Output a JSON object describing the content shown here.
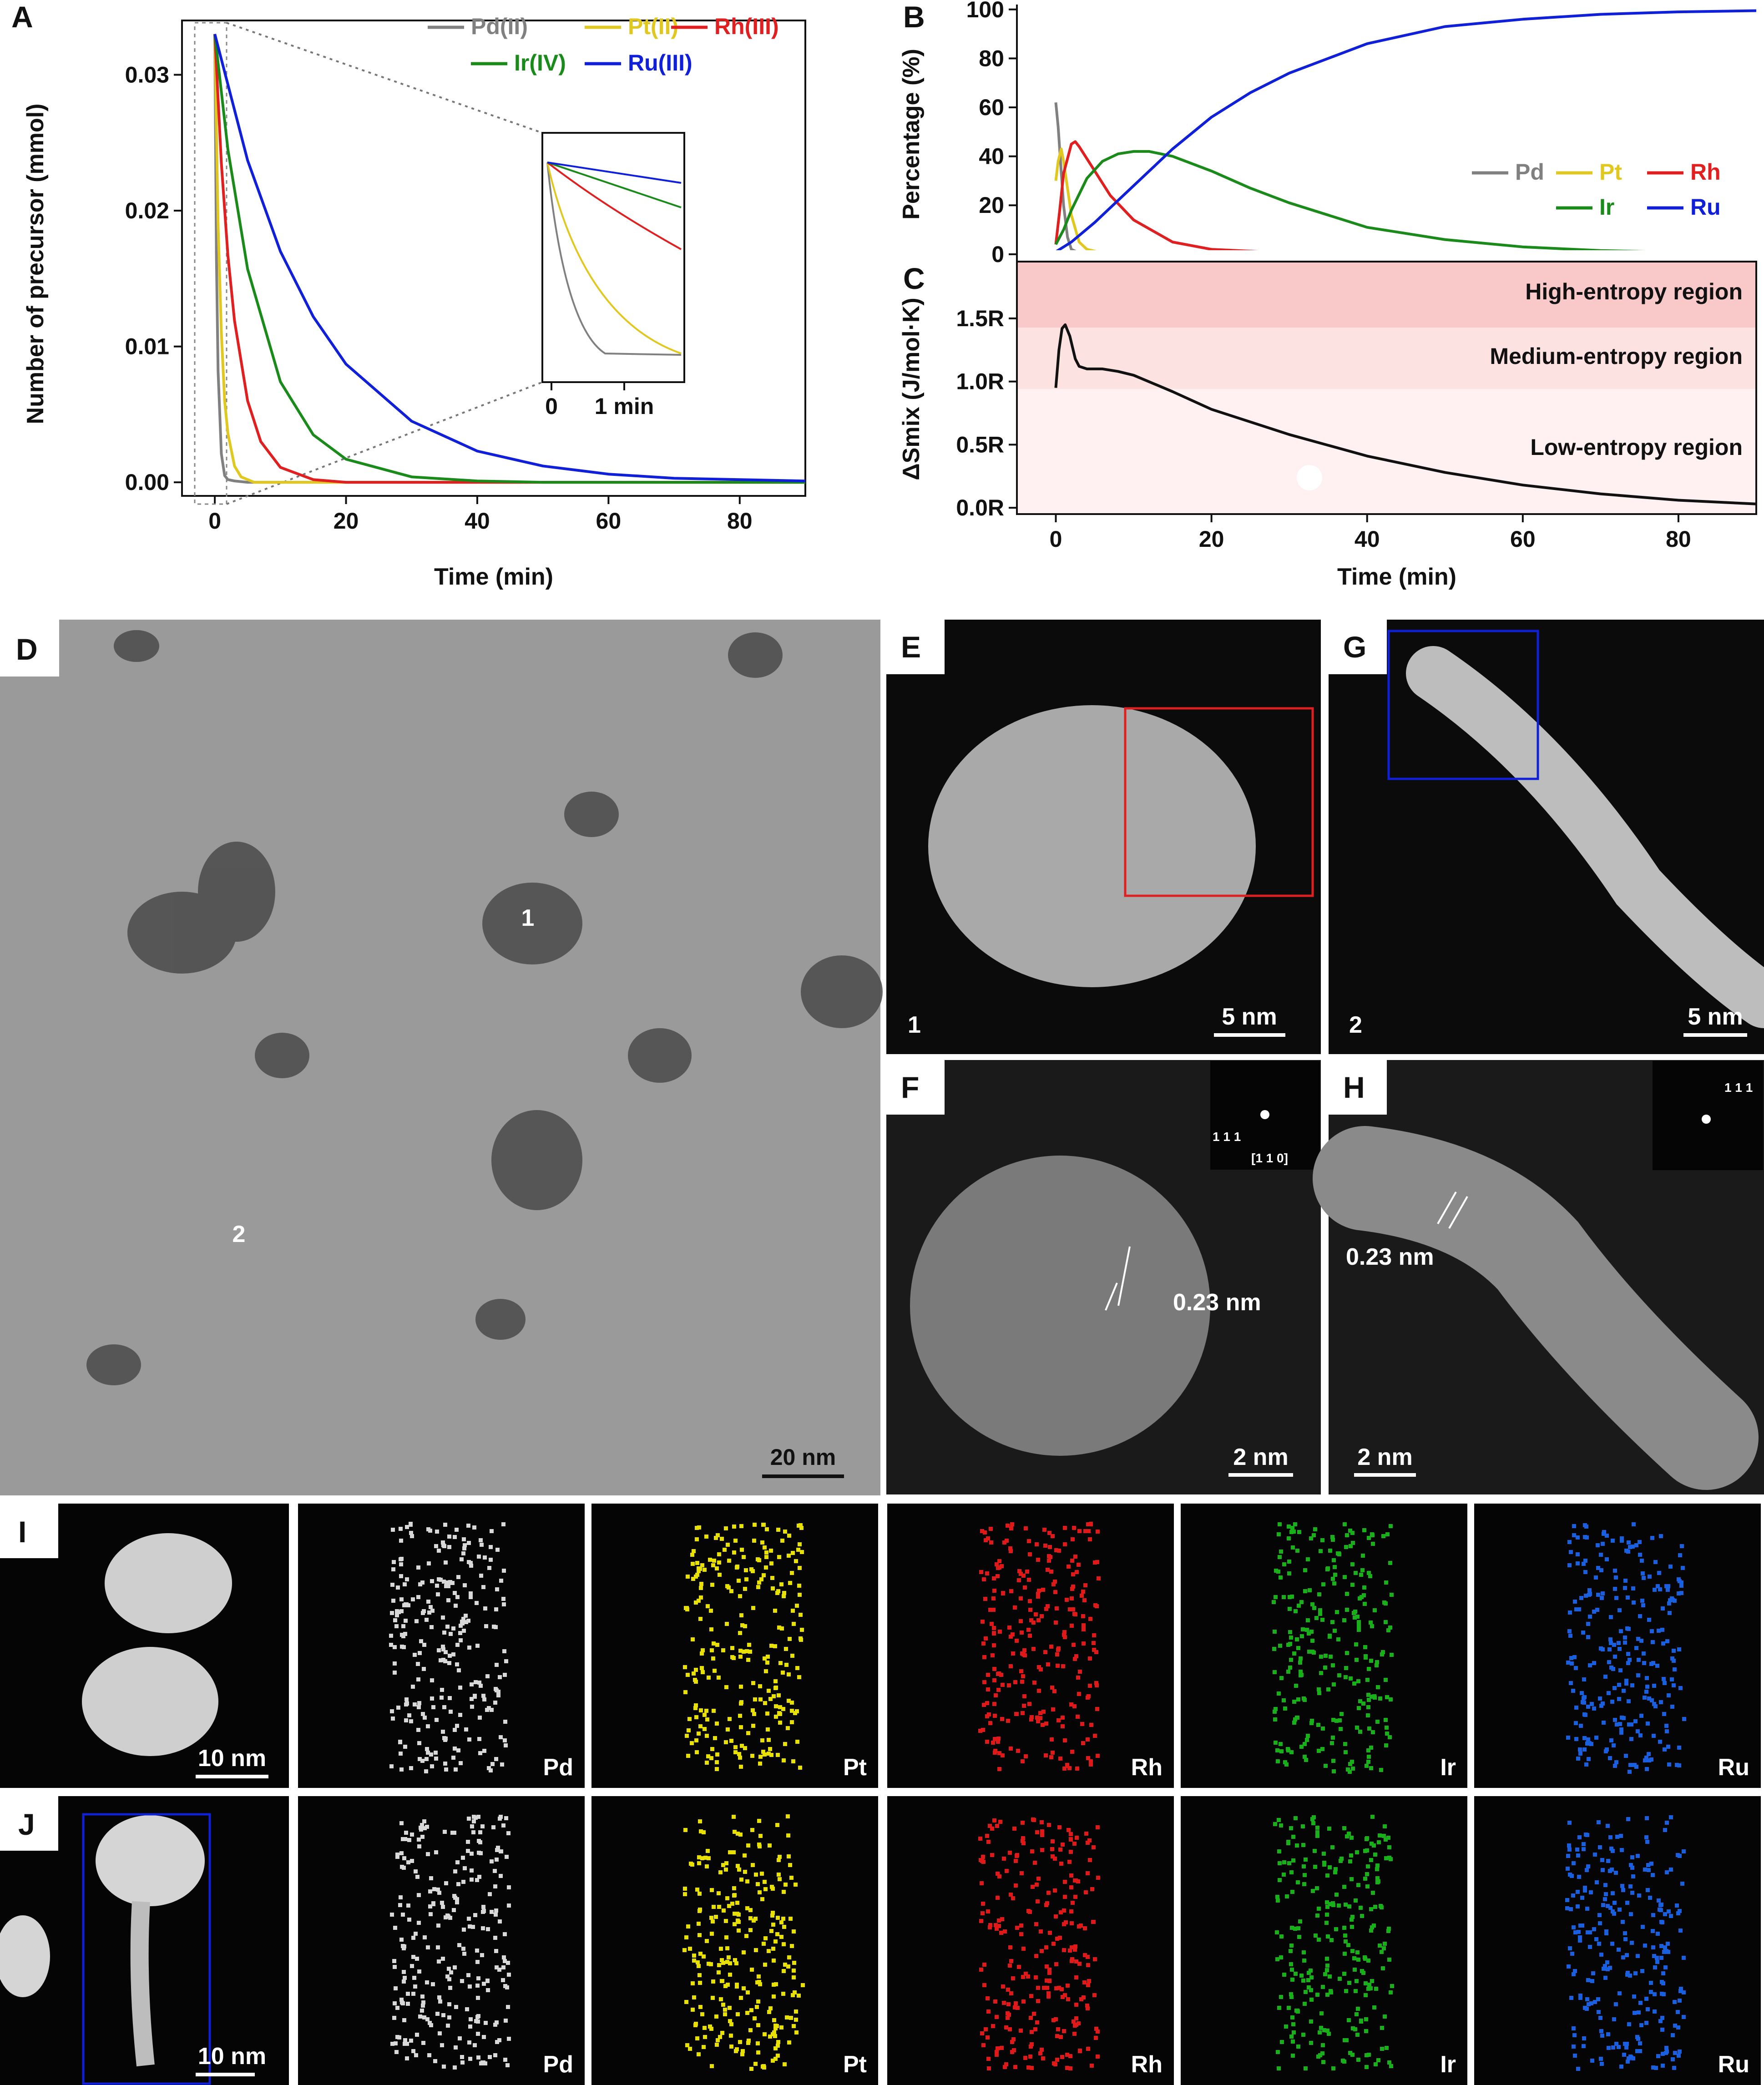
{
  "panel_letters": {
    "A": "A",
    "B": "B",
    "C": "C",
    "D": "D",
    "E": "E",
    "F": "F",
    "G": "G",
    "H": "H",
    "I": "I",
    "J": "J"
  },
  "chart_data": [
    {
      "panel": "A",
      "type": "line",
      "xlabel": "Time (min)",
      "ylabel": "Number of precursor (mmol)",
      "xlim": [
        -5,
        90
      ],
      "ylim": [
        -0.001,
        0.034
      ],
      "xticks": [
        "0",
        "20",
        "40",
        "60",
        "80"
      ],
      "yticks": [
        "0.00",
        "0.01",
        "0.02",
        "0.03"
      ],
      "series": [
        {
          "name": "Pd(II)",
          "color": "#808080",
          "x": [
            0,
            0.25,
            0.5,
            1,
            1.5,
            2,
            3,
            5,
            90
          ],
          "y": [
            0.033,
            0.0165,
            0.0082,
            0.0021,
            0.0005,
            0.0002,
            0.0001,
            0,
            0
          ]
        },
        {
          "name": "Pt(II)",
          "color": "#e0c820",
          "x": [
            0,
            0.5,
            1,
            1.5,
            2,
            3,
            4,
            6,
            10,
            90
          ],
          "y": [
            0.033,
            0.019,
            0.011,
            0.006,
            0.0036,
            0.0012,
            0.0004,
            0,
            0,
            0
          ]
        },
        {
          "name": "Rh(III)",
          "color": "#e02020",
          "x": [
            0,
            1,
            2,
            3,
            5,
            7,
            10,
            15,
            20,
            30,
            90
          ],
          "y": [
            0.033,
            0.0235,
            0.0167,
            0.0119,
            0.006,
            0.003,
            0.0011,
            0.0002,
            0,
            0,
            0
          ]
        },
        {
          "name": "Ir(IV)",
          "color": "#1a8a1a",
          "x": [
            0,
            2,
            5,
            10,
            15,
            20,
            30,
            40,
            50,
            60,
            90
          ],
          "y": [
            0.033,
            0.0245,
            0.0157,
            0.0074,
            0.0035,
            0.0017,
            0.0004,
            0.0001,
            0,
            0,
            0
          ]
        },
        {
          "name": "Ru(III)",
          "color": "#1020d8",
          "x": [
            0,
            5,
            10,
            15,
            20,
            30,
            40,
            50,
            60,
            70,
            80,
            90
          ],
          "y": [
            0.033,
            0.0237,
            0.017,
            0.0122,
            0.0087,
            0.0045,
            0.0023,
            0.0012,
            0.0006,
            0.0003,
            0.0002,
            0.0001
          ]
        }
      ],
      "inset": {
        "xticks": [
          "0",
          "1 min"
        ]
      }
    },
    {
      "panel": "B",
      "type": "line",
      "ylabel": "Percentage (%)",
      "xlim": [
        -5,
        90
      ],
      "ylim": [
        -3,
        102
      ],
      "yticks": [
        "0",
        "20",
        "40",
        "60",
        "80",
        "100"
      ],
      "series": [
        {
          "name": "Pd",
          "color": "#808080",
          "x": [
            0,
            0.3,
            0.6,
            1,
            1.5,
            2,
            3,
            5,
            90
          ],
          "y": [
            62,
            52,
            38,
            20,
            7,
            2,
            0.5,
            0,
            0
          ]
        },
        {
          "name": "Pt",
          "color": "#e0c820",
          "x": [
            0,
            0.3,
            0.7,
            1,
            1.5,
            2,
            3,
            4,
            6,
            8,
            90
          ],
          "y": [
            30,
            38,
            43,
            38,
            27,
            16,
            5,
            2,
            0.5,
            0,
            0
          ]
        },
        {
          "name": "Rh",
          "color": "#e02020",
          "x": [
            0,
            0.5,
            1,
            2,
            2.5,
            3,
            5,
            7,
            10,
            15,
            20,
            30,
            90
          ],
          "y": [
            4,
            18,
            33,
            45,
            46,
            44,
            34,
            24,
            14,
            5,
            2,
            0.5,
            0
          ]
        },
        {
          "name": "Ir",
          "color": "#1a8a1a",
          "x": [
            0,
            1,
            2,
            4,
            6,
            8,
            10,
            12,
            15,
            20,
            25,
            30,
            40,
            50,
            60,
            70,
            80,
            90
          ],
          "y": [
            4,
            10,
            18,
            31,
            38,
            41,
            42,
            42,
            40,
            34,
            27,
            21,
            11,
            6,
            3,
            1.5,
            0.8,
            0.4
          ]
        },
        {
          "name": "Ru",
          "color": "#1020d8",
          "x": [
            0,
            2,
            5,
            10,
            15,
            20,
            25,
            30,
            40,
            50,
            60,
            70,
            80,
            90
          ],
          "y": [
            1,
            5,
            13,
            28,
            43,
            56,
            66,
            74,
            86,
            93,
            96,
            98,
            99,
            99.5
          ]
        }
      ]
    },
    {
      "panel": "C",
      "type": "line",
      "xlabel": "Time (min)",
      "ylabel": "ΔSmix (J/mol·K)",
      "xlim": [
        -5,
        90
      ],
      "ylim": [
        -0.05,
        1.95
      ],
      "xticks": [
        "0",
        "20",
        "40",
        "60",
        "80"
      ],
      "yticks": [
        "0.0R",
        "0.5R",
        "1.0R",
        "1.5R"
      ],
      "regions": [
        "High-entropy region",
        "Medium-entropy region",
        "Low-entropy region"
      ],
      "series": [
        {
          "name": "",
          "color": "#111111",
          "x": [
            0,
            0.4,
            0.8,
            1.2,
            1.8,
            2.5,
            3,
            4,
            6,
            8,
            10,
            15,
            20,
            30,
            40,
            50,
            60,
            70,
            80,
            90
          ],
          "y": [
            0.95,
            1.25,
            1.42,
            1.45,
            1.36,
            1.18,
            1.12,
            1.1,
            1.1,
            1.08,
            1.05,
            0.92,
            0.78,
            0.58,
            0.41,
            0.28,
            0.18,
            0.11,
            0.06,
            0.03
          ]
        }
      ]
    }
  ],
  "micrographs": {
    "D": {
      "scale": "20 nm",
      "labels": [
        "1",
        "2"
      ]
    },
    "E": {
      "scale": "5 nm",
      "label": "1"
    },
    "G": {
      "scale": "5 nm",
      "label": "2"
    },
    "F": {
      "scale": "2 nm",
      "spacing": "0.23 nm",
      "fft_labels": [
        "1 1 1",
        "[1 1 0]"
      ]
    },
    "H": {
      "scale": "2 nm",
      "spacing": "0.23 nm",
      "fft_labels": [
        "1 1 1"
      ]
    },
    "I": {
      "scale": "10 nm",
      "elements": [
        "Pd",
        "Pt",
        "Rh",
        "Ir",
        "Ru"
      ]
    },
    "J": {
      "scale": "10 nm",
      "elements": [
        "Pd",
        "Pt",
        "Rh",
        "Ir",
        "Ru"
      ]
    }
  }
}
